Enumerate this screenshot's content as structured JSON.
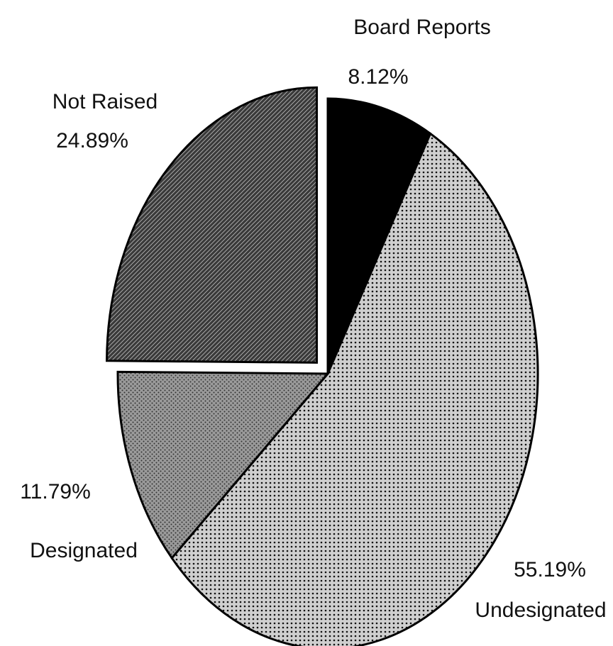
{
  "chart_data": {
    "type": "pie",
    "categories": [
      "Board Reports",
      "Undesignated",
      "Designated",
      "Not Raised"
    ],
    "values": [
      8.12,
      55.19,
      11.79,
      24.89
    ],
    "value_labels": [
      "8.12%",
      "55.19%",
      "11.79%",
      "24.89%"
    ],
    "colors": [
      "#000000",
      "#cfcfcf",
      "#9a9a9a",
      "#3a3a3a"
    ],
    "exploded": "Not Raised"
  }
}
